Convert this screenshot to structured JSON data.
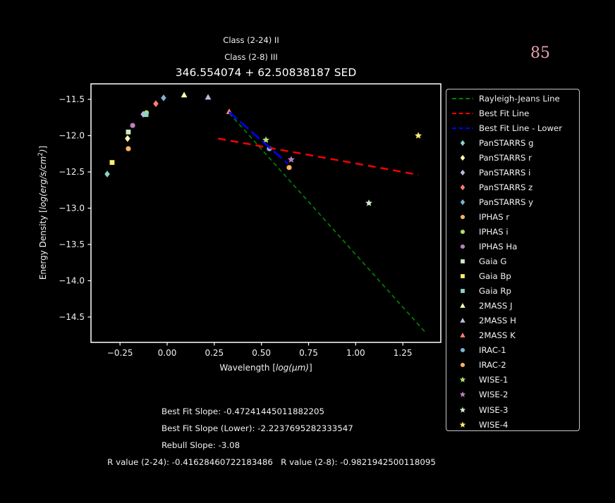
{
  "header": {
    "class_line_1": "Class (2-24) II",
    "class_line_2": "Class (2-8) III",
    "page_number": "85"
  },
  "chart_data": {
    "type": "scatter",
    "title": "346.554074 + 62.50838187 SED",
    "xlabel": "Wavelength [log(μm)]",
    "ylabel": "Energy Density [log(erg/s/cm2)]",
    "xlabel_parts": {
      "prefix": "Wavelength [",
      "math": "log(μm)",
      "suffix": "]"
    },
    "ylabel_parts": {
      "prefix": "Energy Density [",
      "math": "log(erg/s/cm",
      "sup": "2",
      "math_close": ")",
      "suffix": "]"
    },
    "xlim": [
      -0.404,
      1.4514
    ],
    "ylim": [
      -14.85,
      -11.286
    ],
    "grid": false,
    "legend_position": "outside-right",
    "x_ticks": [
      {
        "v": -0.25,
        "label": "−0.25"
      },
      {
        "v": 0.0,
        "label": "0.00"
      },
      {
        "v": 0.25,
        "label": "0.25"
      },
      {
        "v": 0.5,
        "label": "0.50"
      },
      {
        "v": 0.75,
        "label": "0.75"
      },
      {
        "v": 1.0,
        "label": "1.00"
      },
      {
        "v": 1.25,
        "label": "1.25"
      }
    ],
    "y_ticks": [
      {
        "v": -11.5,
        "label": "−11.5"
      },
      {
        "v": -12.0,
        "label": "−12.0"
      },
      {
        "v": -12.5,
        "label": "−12.5"
      },
      {
        "v": -13.0,
        "label": "−13.0"
      },
      {
        "v": -13.5,
        "label": "−13.5"
      },
      {
        "v": -14.0,
        "label": "−14.0"
      },
      {
        "v": -14.5,
        "label": "−14.5"
      }
    ],
    "lines": [
      {
        "name": "Rayleigh-Jeans Line",
        "color": "#008000",
        "x": [
          0.329,
          1.369
        ],
        "y": [
          -11.69,
          -14.71
        ],
        "dash": "6 4.5",
        "width": 1.7
      },
      {
        "name": "Best Fit Line",
        "color": "#ff0000",
        "x": [
          0.27,
          1.332
        ],
        "y": [
          -12.04,
          -12.54
        ],
        "dash": "11 7",
        "width": 2.4
      },
      {
        "name": "Best Fit Line - Lower",
        "color": "#0000ff",
        "x": [
          0.329,
          0.64
        ],
        "y": [
          -11.675,
          -12.385
        ],
        "dash": "15 6",
        "width": 2.6
      }
    ],
    "series": [
      {
        "name": "PanSTARRS g",
        "marker": "diamond",
        "color": "#8dd3c7",
        "x": -0.318,
        "y": -12.53
      },
      {
        "name": "PanSTARRS r",
        "marker": "diamond",
        "color": "#ffffb3",
        "x": -0.21,
        "y": -12.04
      },
      {
        "name": "PanSTARRS i",
        "marker": "diamond",
        "color": "#bebada",
        "x": -0.127,
        "y": -11.705
      },
      {
        "name": "PanSTARRS z",
        "marker": "diamond",
        "color": "#fb8072",
        "x": -0.06,
        "y": -11.56
      },
      {
        "name": "PanSTARRS y",
        "marker": "diamond",
        "color": "#80b1d3",
        "x": -0.019,
        "y": -11.48
      },
      {
        "name": "IPHAS r",
        "marker": "circle",
        "color": "#fdb462",
        "x": -0.206,
        "y": -12.18
      },
      {
        "name": "IPHAS i",
        "marker": "circle",
        "color": "#b3de69",
        "x": -0.11,
        "y": -11.685
      },
      {
        "name": "IPHAS Ha",
        "marker": "circle",
        "color": "#bc80bd",
        "x": -0.183,
        "y": -11.86
      },
      {
        "name": "Gaia G",
        "marker": "square",
        "color": "#ccebc5",
        "x": -0.206,
        "y": -11.95
      },
      {
        "name": "Gaia Bp",
        "marker": "square",
        "color": "#ffed6f",
        "x": -0.292,
        "y": -12.37
      },
      {
        "name": "Gaia Rp",
        "marker": "square",
        "color": "#8dd3c7",
        "x": -0.112,
        "y": -11.71
      },
      {
        "name": "2MASS J",
        "marker": "triangle",
        "color": "#ffffb3",
        "x": 0.09,
        "y": -11.44
      },
      {
        "name": "2MASS H",
        "marker": "triangle",
        "color": "#bebada",
        "x": 0.217,
        "y": -11.47
      },
      {
        "name": "2MASS K",
        "marker": "triangle",
        "color": "#fb8072",
        "x": 0.329,
        "y": -11.67
      },
      {
        "name": "IRAC-1",
        "marker": "circle",
        "color": "#80b1d3",
        "x": 0.542,
        "y": -12.18
      },
      {
        "name": "IRAC-2",
        "marker": "circle",
        "color": "#fdb462",
        "x": 0.647,
        "y": -12.44
      },
      {
        "name": "WISE-1",
        "marker": "star",
        "color": "#b3de69",
        "x": 0.524,
        "y": -12.06
      },
      {
        "name": "WISE-2",
        "marker": "star",
        "color": "#bc80bd",
        "x": 0.658,
        "y": -12.33
      },
      {
        "name": "WISE-3",
        "marker": "star",
        "color": "#ccebc5",
        "x": 1.07,
        "y": -12.93
      },
      {
        "name": "WISE-4",
        "marker": "star",
        "color": "#ffed6f",
        "x": 1.332,
        "y": -12.0
      }
    ]
  },
  "stats": {
    "lines": [
      {
        "text": "Best Fit Slope: -0.47241445011882205"
      },
      {
        "text": "Best Fit Slope (Lower): -2.2237695282333547"
      },
      {
        "text": "Rebull Slope: -3.08"
      },
      {
        "text": "R value (2-24): -0.41628460722183486   R value (2-8): -0.9821942500118095"
      }
    ]
  },
  "colors": {
    "background": "#000000",
    "foreground": "#ffffff",
    "page_number": "#e8a0ae",
    "legend_border": "#c8c8c8",
    "rayleigh_jeans": "#008000",
    "best_fit": "#ff0000",
    "best_fit_lower": "#0000ff"
  }
}
